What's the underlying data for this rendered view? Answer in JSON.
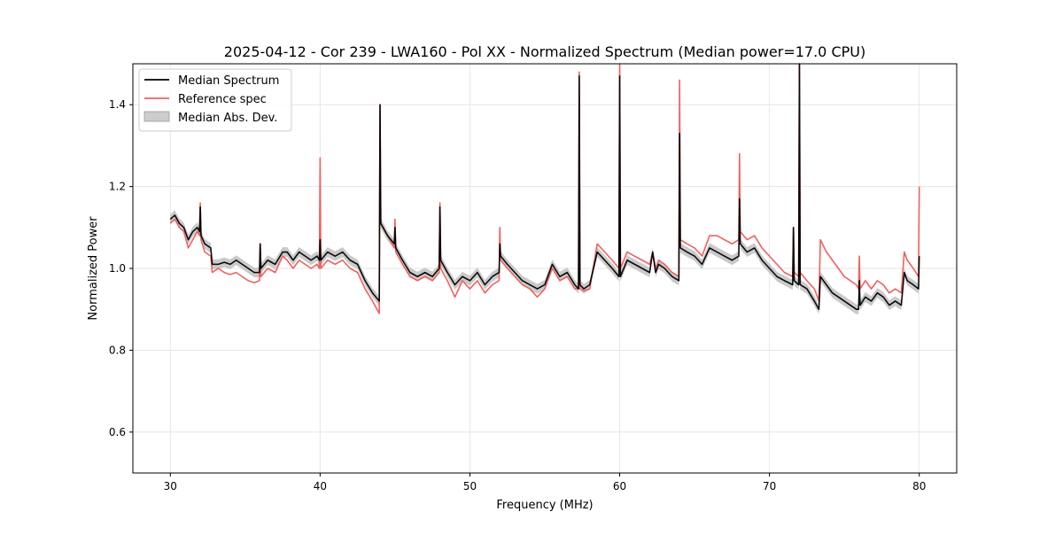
{
  "chart_data": {
    "type": "line",
    "title": "2025-04-12 - Cor 239 - LWA160 - Pol XX - Normalized Spectrum (Median power=17.0 CPU)",
    "xlabel": "Frequency (MHz)",
    "ylabel": "Normalized Power",
    "xlim": [
      27.5,
      82.5
    ],
    "ylim": [
      0.5,
      1.5
    ],
    "xticks": [
      30,
      40,
      50,
      60,
      70,
      80
    ],
    "yticks": [
      0.6,
      0.8,
      1.0,
      1.2,
      1.4
    ],
    "xtick_labels": [
      "30",
      "40",
      "50",
      "60",
      "70",
      "80"
    ],
    "ytick_labels": [
      "0.6",
      "0.8",
      "1.0",
      "1.2",
      "1.4"
    ],
    "grid": true,
    "legend_position": "top-left",
    "legend": [
      {
        "label": "Median Spectrum",
        "kind": "line",
        "color": "#000000"
      },
      {
        "label": "Reference spec",
        "kind": "line",
        "color": "#f06060"
      },
      {
        "label": "Median Abs. Dev.",
        "kind": "patch",
        "color": "#bdbdbd"
      }
    ],
    "series": [
      {
        "name": "Median Spectrum",
        "color": "#000000",
        "x": [
          30.0,
          30.3,
          30.6,
          30.9,
          31.2,
          31.5,
          31.8,
          31.95,
          32.0,
          32.05,
          32.3,
          32.7,
          32.8,
          33.2,
          33.6,
          34.0,
          34.4,
          34.8,
          35.2,
          35.6,
          35.95,
          36.0,
          36.05,
          36.5,
          37.0,
          37.5,
          37.8,
          38.2,
          38.6,
          39.0,
          39.4,
          39.8,
          39.95,
          40.0,
          40.05,
          40.5,
          41.0,
          41.5,
          42.0,
          42.5,
          43.0,
          43.5,
          43.95,
          44.0,
          44.05,
          44.5,
          44.95,
          45.0,
          45.05,
          45.5,
          46.0,
          46.5,
          47.0,
          47.5,
          47.95,
          48.0,
          48.05,
          48.5,
          49.0,
          49.5,
          50.0,
          50.5,
          51.0,
          51.5,
          51.95,
          52.0,
          52.05,
          52.5,
          53.0,
          53.5,
          54.0,
          54.5,
          55.0,
          55.5,
          56.0,
          56.5,
          57.0,
          57.25,
          57.3,
          57.35,
          57.6,
          58.0,
          58.5,
          59.0,
          59.5,
          59.95,
          60.0,
          60.05,
          60.5,
          61.0,
          61.5,
          62.0,
          62.2,
          62.4,
          62.6,
          63.0,
          63.5,
          63.95,
          64.0,
          64.05,
          64.5,
          65.0,
          65.5,
          66.0,
          66.5,
          67.0,
          67.5,
          67.95,
          68.0,
          68.05,
          68.5,
          69.0,
          69.5,
          70.0,
          70.5,
          71.0,
          71.55,
          71.6,
          71.65,
          71.95,
          72.0,
          72.05,
          72.5,
          73.0,
          73.3,
          73.4,
          73.8,
          74.2,
          74.6,
          75.0,
          75.4,
          75.8,
          75.95,
          76.0,
          76.05,
          76.4,
          76.8,
          77.2,
          77.6,
          78.0,
          78.4,
          78.8,
          79.0,
          79.2,
          79.6,
          79.95,
          80.0
        ],
        "y": [
          1.12,
          1.13,
          1.11,
          1.1,
          1.07,
          1.09,
          1.1,
          1.09,
          1.15,
          1.08,
          1.06,
          1.05,
          1.01,
          1.01,
          1.015,
          1.01,
          1.02,
          1.01,
          1.0,
          0.99,
          0.99,
          1.06,
          1.0,
          1.02,
          1.01,
          1.04,
          1.04,
          1.02,
          1.04,
          1.03,
          1.02,
          1.03,
          1.02,
          1.07,
          1.02,
          1.04,
          1.03,
          1.04,
          1.02,
          1.01,
          0.97,
          0.94,
          0.92,
          1.4,
          1.11,
          1.08,
          1.06,
          1.1,
          1.05,
          1.02,
          0.99,
          0.98,
          0.99,
          0.98,
          1.0,
          1.15,
          1.02,
          0.99,
          0.96,
          0.98,
          0.97,
          0.99,
          0.96,
          0.98,
          0.99,
          1.06,
          1.03,
          1.01,
          0.99,
          0.97,
          0.96,
          0.95,
          0.96,
          1.01,
          0.98,
          0.99,
          0.96,
          0.95,
          1.47,
          0.96,
          0.95,
          0.96,
          1.04,
          1.02,
          1.0,
          0.98,
          1.47,
          0.98,
          1.02,
          1.01,
          1.0,
          0.99,
          1.04,
          0.99,
          1.01,
          1.0,
          0.98,
          0.97,
          1.33,
          1.05,
          1.04,
          1.03,
          1.01,
          1.05,
          1.04,
          1.03,
          1.02,
          1.03,
          1.17,
          1.06,
          1.04,
          1.05,
          1.02,
          1.0,
          0.98,
          0.97,
          0.96,
          1.1,
          0.97,
          0.96,
          1.5,
          0.96,
          0.95,
          0.92,
          0.9,
          0.98,
          0.96,
          0.94,
          0.93,
          0.92,
          0.91,
          0.9,
          0.9,
          0.97,
          0.91,
          0.93,
          0.92,
          0.94,
          0.93,
          0.91,
          0.92,
          0.91,
          0.99,
          0.97,
          0.96,
          0.95,
          1.03
        ]
      },
      {
        "name": "Reference spec",
        "color": "#f06060",
        "x": [
          30.0,
          30.3,
          30.6,
          30.9,
          31.2,
          31.5,
          31.8,
          31.95,
          32.0,
          32.05,
          32.3,
          32.7,
          32.8,
          33.2,
          33.6,
          34.0,
          34.4,
          34.8,
          35.2,
          35.6,
          35.95,
          36.0,
          36.05,
          36.5,
          37.0,
          37.5,
          37.8,
          38.2,
          38.6,
          39.0,
          39.4,
          39.8,
          39.95,
          40.0,
          40.05,
          40.5,
          41.0,
          41.5,
          42.0,
          42.5,
          43.0,
          43.5,
          43.95,
          44.0,
          44.05,
          44.5,
          44.95,
          45.0,
          45.05,
          45.5,
          46.0,
          46.5,
          47.0,
          47.5,
          47.95,
          48.0,
          48.05,
          48.5,
          49.0,
          49.5,
          50.0,
          50.5,
          51.0,
          51.5,
          51.95,
          52.0,
          52.05,
          52.5,
          53.0,
          53.5,
          54.0,
          54.5,
          55.0,
          55.5,
          56.0,
          56.5,
          57.0,
          57.25,
          57.3,
          57.35,
          57.6,
          58.0,
          58.5,
          59.0,
          59.5,
          59.95,
          60.0,
          60.05,
          60.5,
          61.0,
          61.5,
          62.0,
          62.2,
          62.4,
          62.6,
          63.0,
          63.5,
          63.95,
          64.0,
          64.05,
          64.5,
          65.0,
          65.5,
          66.0,
          66.5,
          67.0,
          67.5,
          67.95,
          68.0,
          68.05,
          68.5,
          69.0,
          69.5,
          70.0,
          70.5,
          71.0,
          71.55,
          71.6,
          71.65,
          71.95,
          72.0,
          72.05,
          72.5,
          73.0,
          73.3,
          73.4,
          73.8,
          74.2,
          74.6,
          75.0,
          75.4,
          75.8,
          75.95,
          76.0,
          76.05,
          76.4,
          76.8,
          77.2,
          77.6,
          78.0,
          78.4,
          78.8,
          79.0,
          79.2,
          79.6,
          79.95,
          80.0
        ],
        "y": [
          1.11,
          1.12,
          1.1,
          1.09,
          1.05,
          1.07,
          1.09,
          1.08,
          1.16,
          1.07,
          1.04,
          1.03,
          0.99,
          1.0,
          0.99,
          0.985,
          0.99,
          0.98,
          0.97,
          0.965,
          0.97,
          1.06,
          0.98,
          1.0,
          0.99,
          1.03,
          1.02,
          1.0,
          1.02,
          1.01,
          1.0,
          1.01,
          1.0,
          1.27,
          1.0,
          1.02,
          1.01,
          1.02,
          1.0,
          0.99,
          0.95,
          0.92,
          0.89,
          1.4,
          1.11,
          1.08,
          1.05,
          1.12,
          1.04,
          1.01,
          0.98,
          0.97,
          0.98,
          0.97,
          0.99,
          1.16,
          1.0,
          0.97,
          0.93,
          0.97,
          0.95,
          0.97,
          0.94,
          0.96,
          0.97,
          1.1,
          1.02,
          1.0,
          0.98,
          0.96,
          0.95,
          0.93,
          0.95,
          1.0,
          0.97,
          0.98,
          0.95,
          0.95,
          1.48,
          0.95,
          0.945,
          0.95,
          1.06,
          1.04,
          1.02,
          1.0,
          1.5,
          1.0,
          1.04,
          1.03,
          1.02,
          1.01,
          1.04,
          1.0,
          1.02,
          1.01,
          0.99,
          0.98,
          1.46,
          1.07,
          1.06,
          1.05,
          1.03,
          1.08,
          1.08,
          1.07,
          1.06,
          1.07,
          1.28,
          1.09,
          1.07,
          1.08,
          1.05,
          1.03,
          1.01,
          0.99,
          0.98,
          1.1,
          0.99,
          0.98,
          1.5,
          0.99,
          0.97,
          0.95,
          0.92,
          1.07,
          1.04,
          1.02,
          1.0,
          0.98,
          0.97,
          0.96,
          0.95,
          1.03,
          0.95,
          0.97,
          0.95,
          0.97,
          0.96,
          0.94,
          0.95,
          0.94,
          1.04,
          1.02,
          1.0,
          0.98,
          1.2
        ]
      },
      {
        "name": "Median Abs. Dev.",
        "color": "#bdbdbd",
        "kind": "band",
        "half_width": 0.012
      }
    ]
  }
}
